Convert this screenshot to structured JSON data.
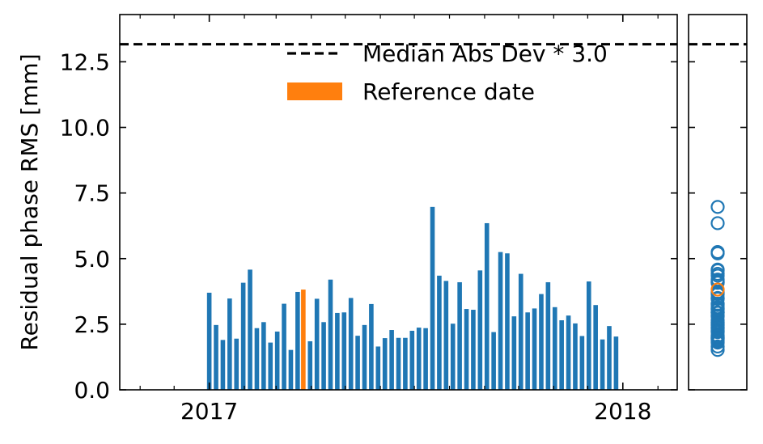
{
  "chart_data": {
    "type": "bar",
    "ylabel": "Residual phase RMS [mm]",
    "ylim": [
      0,
      14.3
    ],
    "y_ticks": [
      0.0,
      2.5,
      5.0,
      7.5,
      10.0,
      12.5
    ],
    "y_tick_labels": [
      "0.0",
      "2.5",
      "5.0",
      "7.5",
      "10.0",
      "12.5"
    ],
    "x_ticks": [
      "2017-01-01",
      "2018-01-01"
    ],
    "x_tick_labels": [
      "2017",
      "2018"
    ],
    "xlim": [
      "2016-10-14",
      "2018-02-18"
    ],
    "threshold": 13.17,
    "legend": {
      "position": "top-center",
      "entries": [
        {
          "label": "Median Abs Dev * 3.0",
          "style": "dashed-line",
          "color": "#000000"
        },
        {
          "label": "Reference date",
          "style": "patch",
          "color": "#ff7f0e"
        }
      ]
    },
    "colors": {
      "bars": "#1f77b4",
      "reference": "#ff7f0e"
    },
    "reference_date": "2017-03-25",
    "series": [
      {
        "dates": [
          "2017-01-01",
          "2017-01-07",
          "2017-01-13",
          "2017-01-19",
          "2017-01-25",
          "2017-01-31",
          "2017-02-06",
          "2017-02-12",
          "2017-02-18",
          "2017-02-24",
          "2017-03-02",
          "2017-03-08",
          "2017-03-14",
          "2017-03-20",
          "2017-03-25",
          "2017-03-31",
          "2017-04-06",
          "2017-04-12",
          "2017-04-18",
          "2017-04-24",
          "2017-04-30",
          "2017-05-06",
          "2017-05-12",
          "2017-05-18",
          "2017-05-24",
          "2017-05-30",
          "2017-06-05",
          "2017-06-11",
          "2017-06-17",
          "2017-06-23",
          "2017-06-29",
          "2017-07-05",
          "2017-07-11",
          "2017-07-17",
          "2017-07-23",
          "2017-07-29",
          "2017-08-04",
          "2017-08-10",
          "2017-08-16",
          "2017-08-22",
          "2017-08-28",
          "2017-09-03",
          "2017-09-09",
          "2017-09-15",
          "2017-09-21",
          "2017-09-27",
          "2017-10-03",
          "2017-10-09",
          "2017-10-15",
          "2017-10-21",
          "2017-10-27",
          "2017-11-02",
          "2017-11-08",
          "2017-11-14",
          "2017-11-20",
          "2017-11-26",
          "2017-12-02",
          "2017-12-08",
          "2017-12-14",
          "2017-12-20",
          "2017-12-26",
          "2018-01-01"
        ],
        "values": [
          3.7,
          2.47,
          1.9,
          3.48,
          1.95,
          4.08,
          4.58,
          2.35,
          2.58,
          1.8,
          2.22,
          3.28,
          1.52,
          3.73,
          3.82,
          1.85,
          3.47,
          2.58,
          4.2,
          2.93,
          2.95,
          3.5,
          2.06,
          2.47,
          3.27,
          1.65,
          1.97,
          2.28,
          1.98,
          1.98,
          2.25,
          2.37,
          2.35,
          6.97,
          4.35,
          4.15,
          2.52,
          4.1,
          3.08,
          3.05,
          4.55,
          6.35,
          2.2,
          5.25,
          5.2,
          2.8,
          4.42,
          2.95,
          3.1,
          3.65,
          4.1,
          3.15,
          2.65,
          2.83,
          2.53,
          2.05,
          4.13,
          3.23,
          1.92,
          2.43,
          2.03,
          0
        ]
      }
    ],
    "marginal_points": [
      6.97,
      6.35,
      5.25,
      5.2,
      4.58,
      4.55,
      4.42,
      4.35,
      4.2,
      4.15,
      4.13,
      4.1,
      4.1,
      4.08,
      3.82,
      3.73,
      3.7,
      3.65,
      3.5,
      3.48,
      3.47,
      3.28,
      3.27,
      3.23,
      3.15,
      3.1,
      3.08,
      3.05,
      2.95,
      2.95,
      2.93,
      2.83,
      2.8,
      2.65,
      2.58,
      2.58,
      2.53,
      2.52,
      2.47,
      2.47,
      2.43,
      2.37,
      2.35,
      2.35,
      2.28,
      2.25,
      2.22,
      2.2,
      2.06,
      2.05,
      2.03,
      1.98,
      1.98,
      1.97,
      1.95,
      1.92,
      1.9,
      1.85,
      1.8,
      1.65,
      1.52
    ]
  }
}
